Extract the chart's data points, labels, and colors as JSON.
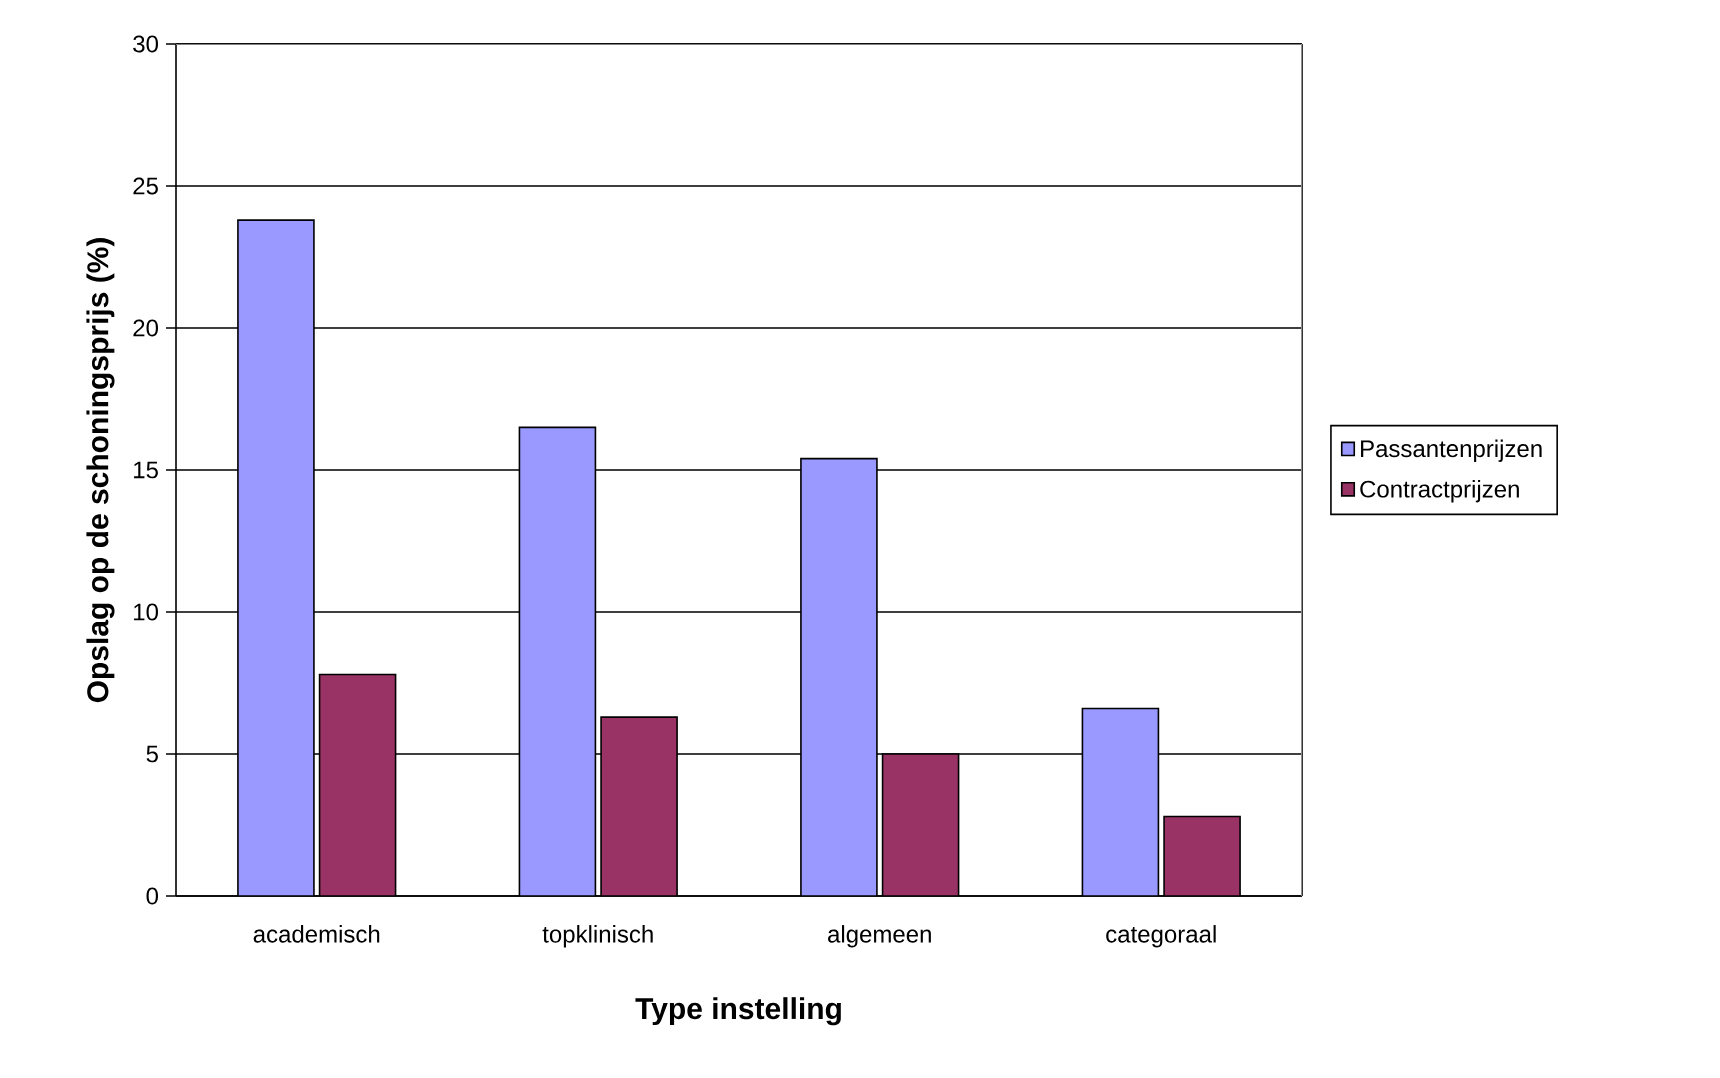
{
  "chart_data": {
    "type": "bar",
    "xlabel": "Type instelling",
    "ylabel": "Opslag op de schoningsprijs (%)",
    "categories": [
      "academisch",
      "topklinisch",
      "algemeen",
      "categoraal"
    ],
    "series": [
      {
        "name": "Passantenprijzen",
        "color": "#9999ff",
        "values": [
          23.8,
          16.5,
          15.4,
          6.6
        ]
      },
      {
        "name": "Contractprijzen",
        "color": "#993366",
        "values": [
          7.8,
          6.3,
          5.0,
          2.8
        ]
      }
    ],
    "ylim": [
      0,
      30
    ],
    "yticks": [
      0,
      5,
      10,
      15,
      20,
      25,
      30
    ],
    "grid": "y",
    "legend": "right"
  }
}
